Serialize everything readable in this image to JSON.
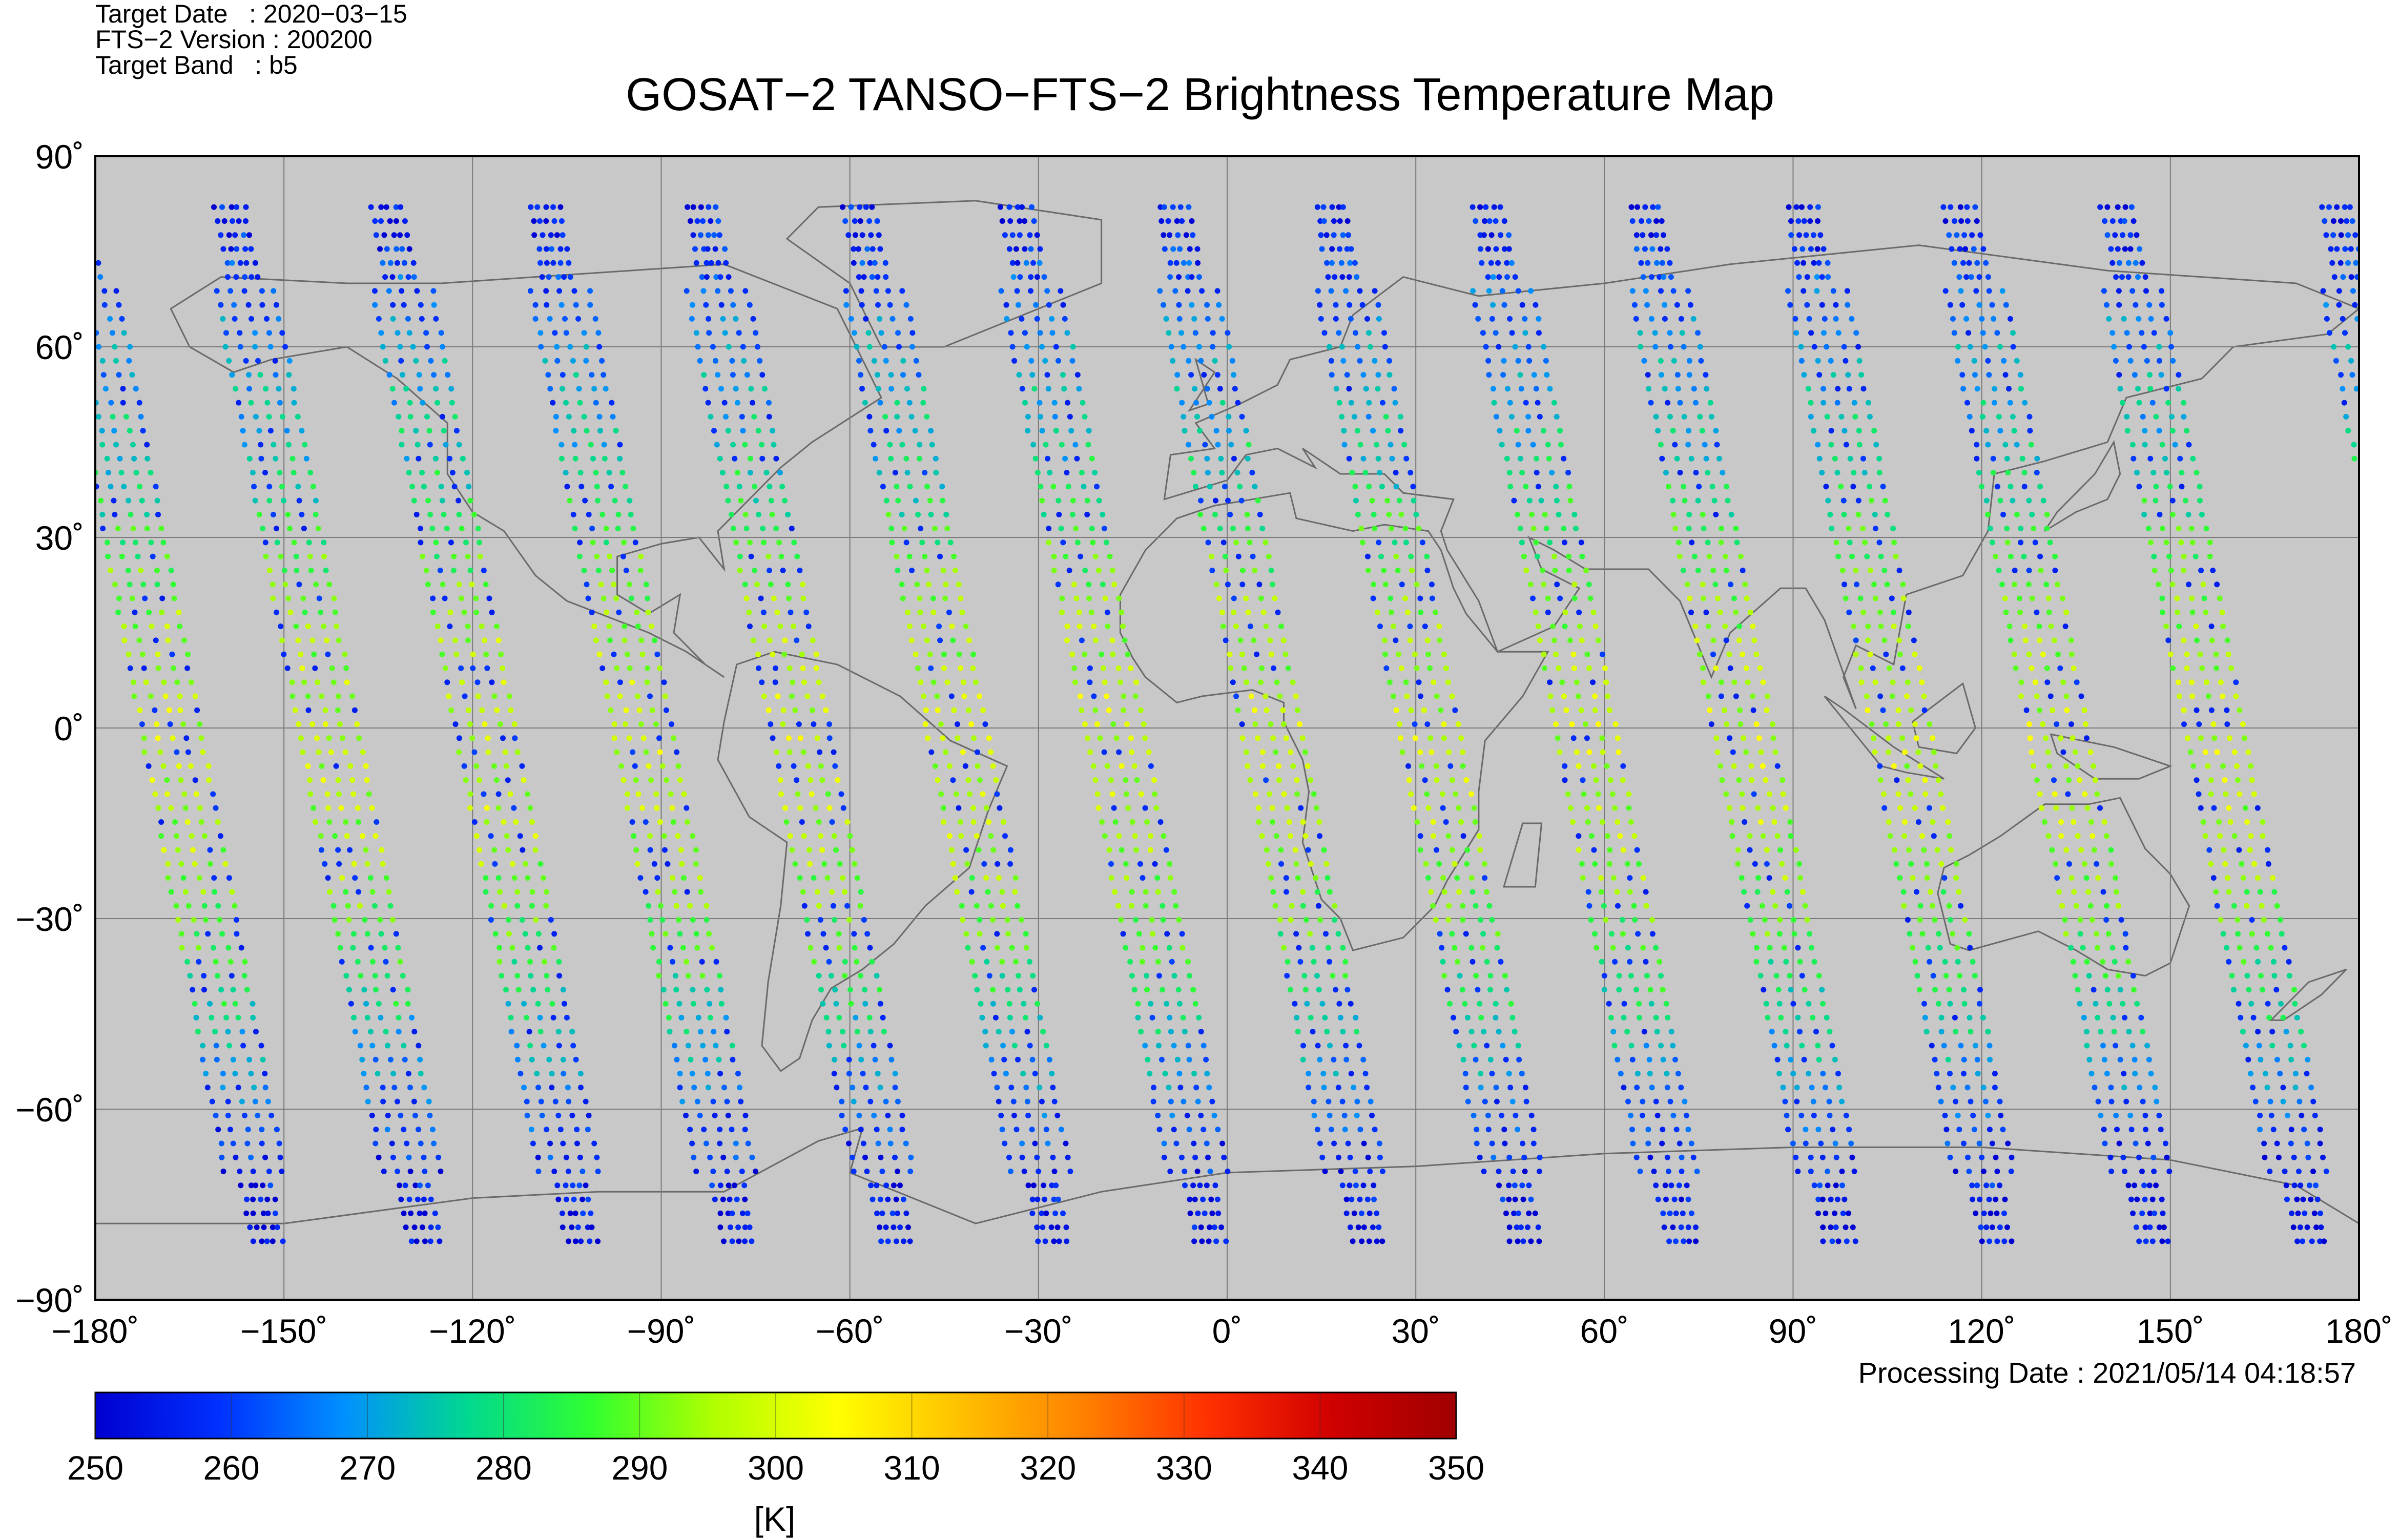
{
  "header": {
    "target_date": "Target Date   : 2020−03−15",
    "version": "FTS−2 Version : 200200",
    "target_band": "Target Band   : b5"
  },
  "title": "GOSAT−2 TANSO−FTS−2 Brightness Temperature Map",
  "processing_date": "Processing Date : 2021/05/14 04:18:57",
  "chart_data": {
    "type": "scatter",
    "title": "GOSAT−2 TANSO−FTS−2 Brightness Temperature Map",
    "x_range": [
      -180,
      180
    ],
    "y_range": [
      -90,
      90
    ],
    "x_ticks": [
      "−180˚",
      "−150˚",
      "−120˚",
      "−90˚",
      "−60˚",
      "−30˚",
      "0˚",
      "30˚",
      "60˚",
      "90˚",
      "120˚",
      "150˚",
      "180˚"
    ],
    "x_tick_values": [
      -180,
      -150,
      -120,
      -90,
      -60,
      -30,
      0,
      30,
      60,
      90,
      120,
      150,
      180
    ],
    "y_ticks": [
      "90˚",
      "60˚",
      "30˚",
      "0˚",
      "−30˚",
      "−60˚",
      "−90˚"
    ],
    "y_tick_values": [
      90,
      60,
      30,
      0,
      -30,
      -60,
      -90
    ],
    "grid": true,
    "background": "#c8c8c8",
    "swaths_ascending_lon_at_equator": [
      -168,
      -143,
      -118,
      -93,
      -68,
      -43,
      -18,
      7,
      32,
      57,
      82,
      107,
      132,
      157
    ],
    "swath_tilt_deg_lon_per_deg_lat": 0.19,
    "swath_values_by_latitude": [
      {
        "lat": 80,
        "temp": 255
      },
      {
        "lat": 60,
        "temp": 268
      },
      {
        "lat": 40,
        "temp": 278
      },
      {
        "lat": 20,
        "temp": 292
      },
      {
        "lat": 0,
        "temp": 298
      },
      {
        "lat": -20,
        "temp": 294
      },
      {
        "lat": -40,
        "temp": 282
      },
      {
        "lat": -60,
        "temp": 262
      },
      {
        "lat": -78,
        "temp": 252
      }
    ],
    "colorbar": {
      "min": 250,
      "max": 350,
      "ticks": [
        "250",
        "260",
        "270",
        "280",
        "290",
        "300",
        "310",
        "320",
        "330",
        "340",
        "350"
      ],
      "unit": "[K]",
      "colors": [
        "#0000d0",
        "#0030ff",
        "#0090ff",
        "#00d890",
        "#30ff30",
        "#b0ff00",
        "#ffff00",
        "#ffc000",
        "#ff8000",
        "#ff3000",
        "#d00000",
        "#a00000"
      ]
    }
  }
}
